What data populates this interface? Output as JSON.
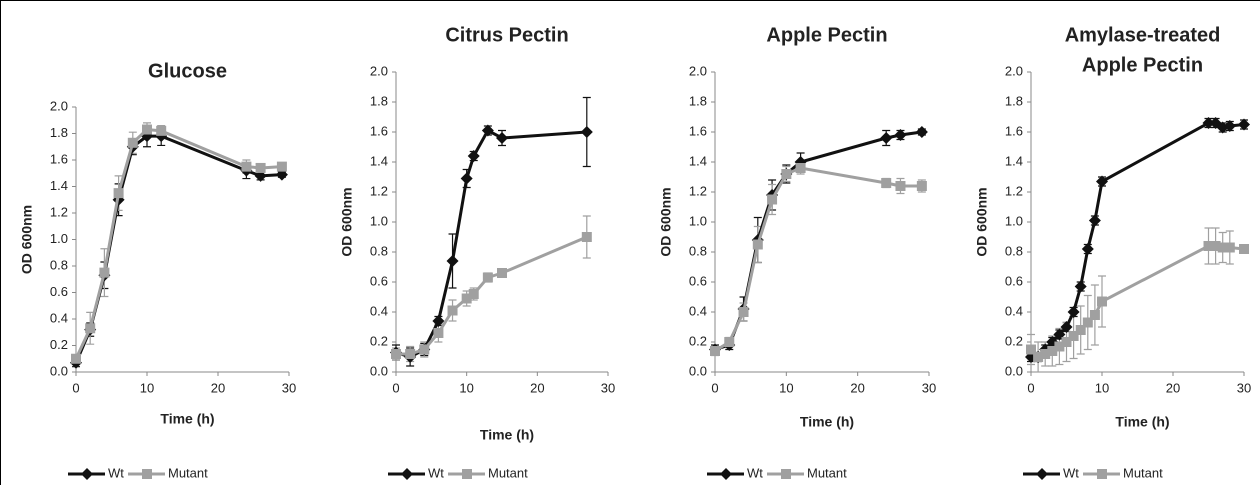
{
  "chart_data": [
    {
      "type": "line",
      "title": [
        "Glucose"
      ],
      "xlabel": "Time (h)",
      "ylabel": "OD 600nm",
      "x": [
        0,
        2,
        4,
        6,
        8,
        10,
        12,
        24,
        26,
        29
      ],
      "series": [
        {
          "name": "Wt",
          "color": "#111111",
          "marker": "diamond",
          "values": [
            0.07,
            0.32,
            0.73,
            1.3,
            1.7,
            1.78,
            1.78,
            1.52,
            1.48,
            1.49
          ],
          "errors": [
            0.03,
            0.05,
            0.1,
            0.12,
            0.06,
            0.08,
            0.07,
            0.06,
            0.03,
            0.02
          ]
        },
        {
          "name": "Mutant",
          "color": "#a0a0a0",
          "marker": "square",
          "values": [
            0.1,
            0.33,
            0.75,
            1.35,
            1.73,
            1.83,
            1.82,
            1.55,
            1.54,
            1.55
          ],
          "errors": [
            0.02,
            0.12,
            0.18,
            0.13,
            0.08,
            0.05,
            0.04,
            0.05,
            0.03,
            0.03
          ]
        }
      ],
      "xlim": [
        0,
        30
      ],
      "xticks": [
        0,
        10,
        20,
        30
      ],
      "ylim": [
        0,
        2
      ],
      "yticks": [
        {
          "value": 0,
          "label": "0.0"
        },
        0.2,
        0.4,
        0.6,
        0.8,
        {
          "value": 1,
          "label": "1.0"
        },
        1.2,
        1.4,
        1.6,
        1.8,
        {
          "value": 2,
          "label": "2.0"
        }
      ]
    },
    {
      "type": "line",
      "title": [
        "Citrus Pectin"
      ],
      "xlabel": "Time (h)",
      "ylabel": "OD 600nm",
      "x": [
        0,
        2,
        4,
        6,
        8,
        10,
        11,
        13,
        15,
        27
      ],
      "series": [
        {
          "name": "Wt",
          "color": "#111111",
          "marker": "diamond",
          "values": [
            0.13,
            0.1,
            0.15,
            0.34,
            0.74,
            1.29,
            1.44,
            1.61,
            1.56,
            1.6
          ],
          "errors": [
            0.05,
            0.06,
            0.04,
            0.03,
            0.18,
            0.06,
            0.03,
            0.03,
            0.05,
            0.23
          ]
        },
        {
          "name": "Mutant",
          "color": "#a0a0a0",
          "marker": "square",
          "values": [
            0.12,
            0.12,
            0.15,
            0.26,
            0.41,
            0.49,
            0.52,
            0.63,
            0.66,
            0.9
          ],
          "errors": [
            0.04,
            0.05,
            0.05,
            0.06,
            0.07,
            0.05,
            0.04,
            0.03,
            0.02,
            0.14
          ]
        }
      ],
      "xlim": [
        0,
        30
      ],
      "xticks": [
        0,
        10,
        20,
        30
      ],
      "ylim": [
        0,
        2
      ],
      "yticks": [
        {
          "value": 0,
          "label": "0.0"
        },
        0.2,
        0.4,
        0.6,
        0.8,
        {
          "value": 1,
          "label": "1.0"
        },
        1.2,
        1.4,
        1.6,
        1.8,
        {
          "value": 2,
          "label": "2.0"
        }
      ]
    },
    {
      "type": "line",
      "title": [
        "Apple Pectin"
      ],
      "xlabel": "Time (h)",
      "ylabel": "OD 600nm",
      "x": [
        0,
        2,
        4,
        6,
        8,
        10,
        12,
        24,
        26,
        29
      ],
      "series": [
        {
          "name": "Wt",
          "color": "#111111",
          "marker": "diamond",
          "values": [
            0.15,
            0.18,
            0.42,
            0.88,
            1.18,
            1.32,
            1.4,
            1.56,
            1.58,
            1.6
          ],
          "errors": [
            0.03,
            0.03,
            0.08,
            0.15,
            0.1,
            0.06,
            0.06,
            0.05,
            0.03,
            0.02
          ]
        },
        {
          "name": "Mutant",
          "color": "#a0a0a0",
          "marker": "square",
          "values": [
            0.14,
            0.2,
            0.4,
            0.85,
            1.15,
            1.32,
            1.36,
            1.26,
            1.24,
            1.24
          ],
          "errors": [
            0.03,
            0.03,
            0.06,
            0.12,
            0.1,
            0.05,
            0.04,
            0.03,
            0.05,
            0.04
          ]
        }
      ],
      "xlim": [
        0,
        30
      ],
      "xticks": [
        0,
        10,
        20,
        30
      ],
      "ylim": [
        0,
        2
      ],
      "yticks": [
        {
          "value": 0,
          "label": "0.0"
        },
        0.2,
        0.4,
        0.6,
        0.8,
        {
          "value": 1,
          "label": "1.0"
        },
        1.2,
        1.4,
        1.6,
        1.8,
        {
          "value": 2,
          "label": "2.0"
        }
      ]
    },
    {
      "type": "line",
      "title": [
        "Amylase-treated",
        "Apple Pectin"
      ],
      "xlabel": "Time (h)",
      "ylabel": "OD 600nm",
      "x": [
        0,
        1,
        2,
        3,
        4,
        5,
        6,
        7,
        8,
        9,
        10,
        25,
        26,
        27,
        28,
        30
      ],
      "series": [
        {
          "name": "Wt",
          "color": "#111111",
          "marker": "diamond",
          "values": [
            0.1,
            0.1,
            0.15,
            0.2,
            0.25,
            0.3,
            0.4,
            0.57,
            0.82,
            1.01,
            1.27,
            1.66,
            1.66,
            1.63,
            1.64,
            1.65
          ],
          "errors": [
            0.03,
            0.03,
            0.03,
            0.03,
            0.03,
            0.03,
            0.03,
            0.03,
            0.03,
            0.03,
            0.03,
            0.03,
            0.03,
            0.03,
            0.03,
            0.03
          ]
        },
        {
          "name": "Mutant",
          "color": "#a0a0a0",
          "marker": "square",
          "values": [
            0.15,
            0.1,
            0.12,
            0.14,
            0.17,
            0.2,
            0.24,
            0.28,
            0.33,
            0.38,
            0.47,
            0.84,
            0.84,
            0.83,
            0.83,
            0.82
          ],
          "errors": [
            0.1,
            0.1,
            0.08,
            0.1,
            0.12,
            0.13,
            0.15,
            0.16,
            0.18,
            0.2,
            0.17,
            0.12,
            0.12,
            0.1,
            0.11,
            0.02
          ]
        }
      ],
      "xlim": [
        0,
        30
      ],
      "xticks": [
        0,
        10,
        20,
        30
      ],
      "ylim": [
        0,
        2
      ],
      "yticks": [
        {
          "value": 0,
          "label": "0.0"
        },
        0.2,
        0.4,
        0.6,
        0.8,
        {
          "value": 1,
          "label": "1.0"
        },
        1.2,
        1.4,
        1.6,
        1.8,
        {
          "value": 2,
          "label": "2.0"
        }
      ]
    }
  ]
}
